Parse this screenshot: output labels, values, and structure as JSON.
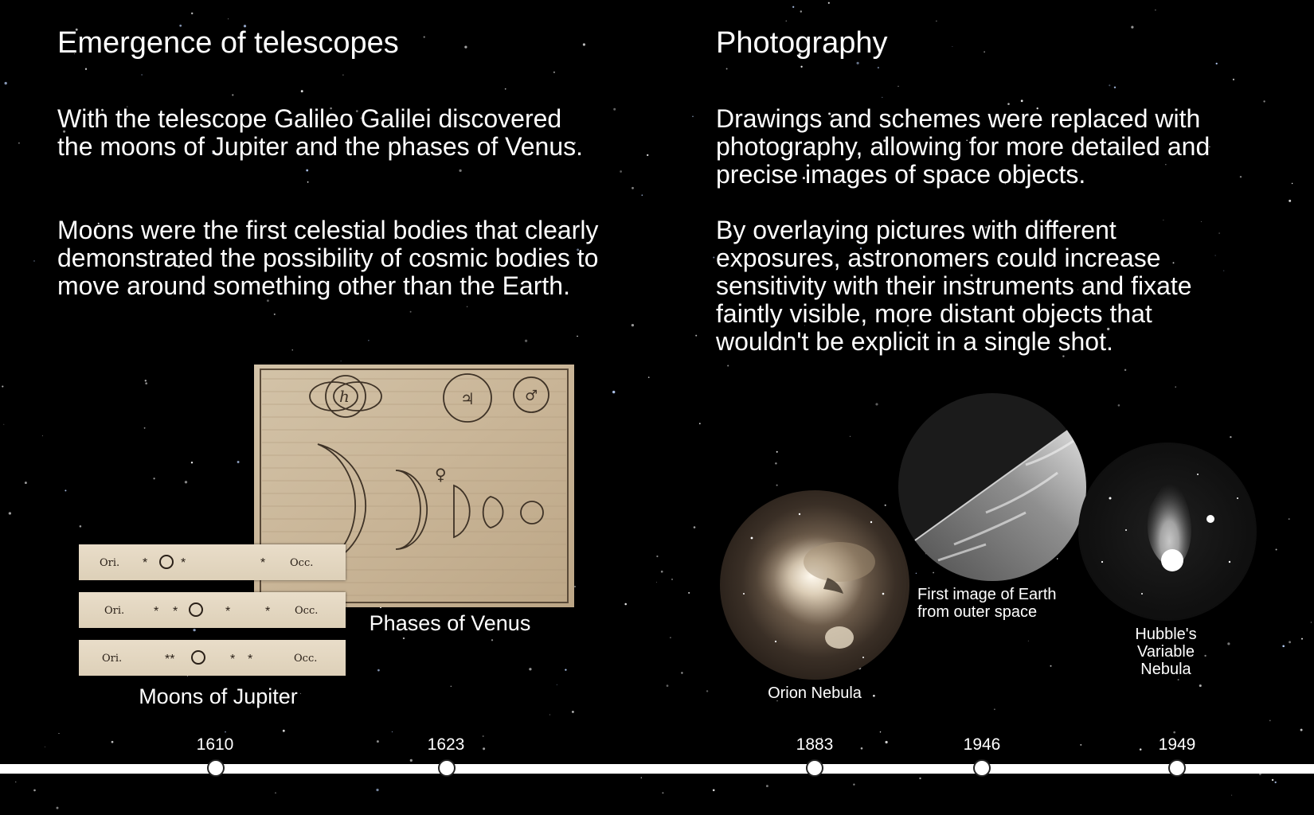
{
  "left": {
    "heading": "Emergence of telescopes",
    "paragraph1": "With the telescope Galileo Galilei discovered the moons of Jupiter and the phases of Venus.",
    "paragraph2": "Moons were the first celestial bodies that clearly demonstrated the possibility of cosmic bodies to move around something other than the Earth.",
    "captions": {
      "venus": "Phases of Venus",
      "jupiter": "Moons of Jupiter"
    },
    "jupiter_strips": [
      {
        "left": "Ori.",
        "right": "Occ."
      },
      {
        "left": "Ori.",
        "right": "Occ."
      },
      {
        "left": "Ori.",
        "right": "Occ."
      }
    ]
  },
  "right": {
    "heading": "Photography",
    "paragraph1": "Drawings and schemes were replaced with photography, allowing for more detailed and precise images of space objects.",
    "paragraph2": "By overlaying pictures with different exposures, astronomers could increase sensitivity with their instruments and fixate faintly visible, more distant objects that wouldn't be explicit in a single shot.",
    "captions": {
      "orion": "Orion Nebula",
      "earth": "First image of Earth from outer space",
      "hubble": "Hubble's Variable Nebula"
    }
  },
  "timeline": {
    "years": [
      "1610",
      "1623",
      "1883",
      "1946",
      "1949"
    ]
  },
  "colors": {
    "background": "#000000",
    "text": "#ffffff",
    "parchment": "#cbb89c"
  }
}
